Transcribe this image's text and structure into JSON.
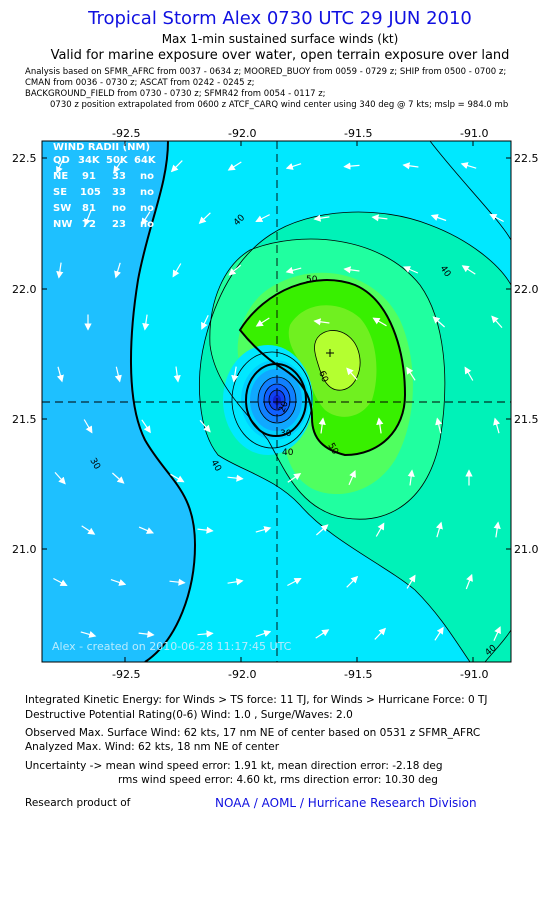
{
  "header": {
    "title": "Tropical Storm Alex 0730 UTC 29 JUN 2010",
    "subtitle": "Max 1-min sustained surface winds (kt)",
    "validity": "Valid for marine exposure over water, open terrain exposure over land",
    "meta_lines": [
      "Analysis based on   SFMR_AFRC from 0037 - 0634 z;  MOORED_BUOY from 0059 - 0729 z;  SHIP from 0500 - 0700 z;",
      "CMAN from 0036 - 0730 z;  ASCAT from 0242 - 0245 z;",
      "BACKGROUND_FIELD from 0730 - 0730 z;  SFMR42 from 0054 - 0117 z;",
      "0730 z position extrapolated from 0600 z ATCF_CARQ wind center using 340 deg @ 7 kts; mslp = 984.0 mb"
    ]
  },
  "map": {
    "lon_ticks": [
      "-92.5",
      "-92.0",
      "-91.5",
      "-91.0"
    ],
    "lat_ticks": [
      "22.5",
      "22.0",
      "21.5",
      "21.0"
    ],
    "wind_radii": {
      "title": "WIND RADII (NM)",
      "header": [
        "QD",
        "34K",
        "50K",
        "64K"
      ],
      "rows": [
        [
          "NE",
          "91",
          "33",
          "no"
        ],
        [
          "SE",
          "105",
          "33",
          "no"
        ],
        [
          "SW",
          "81",
          "no",
          "no"
        ],
        [
          "NW",
          "72",
          "23",
          "no"
        ]
      ]
    },
    "contour_labels": [
      "40",
      "40",
      "50",
      "60",
      "50",
      "40",
      "30",
      "20",
      "30",
      "40",
      "40"
    ],
    "watermark": "Alex - created on 2010-06-28 11:17:45 UTC",
    "colors": {
      "blue_outer": "#1ec0ff",
      "cyan": "#00e8ff",
      "teal": "#00f2b8",
      "mint": "#20ffa0",
      "light_green": "#50ff60",
      "green": "#38f000",
      "yellow_green": "#b4ff30",
      "eye_blue": "#1060ff"
    }
  },
  "footer": {
    "ike": "Integrated Kinetic Energy:  for Winds > TS force: 11 TJ,  for Winds > Hurricane Force: 0 TJ",
    "dpr": "Destructive Potential Rating(0-6)   Wind: 1.0 , Surge/Waves: 2.0",
    "obs_max": "Observed Max. Surface Wind: 62 kts, 17 nm NE of center based on 0531 z SFMR_AFRC",
    "analyzed_max": "Analyzed Max. Wind: 62 kts, 18 nm NE of center",
    "uncertainty_1": "Uncertainty -> mean wind speed error: 1.91 kt,    mean direction error:  -2.18 deg",
    "uncertainty_2": "rms wind speed error: 4.60 kt,   rms direction error: 10.30 deg",
    "research": "Research product of",
    "org": "NOAA / AOML / Hurricane Research Division"
  }
}
